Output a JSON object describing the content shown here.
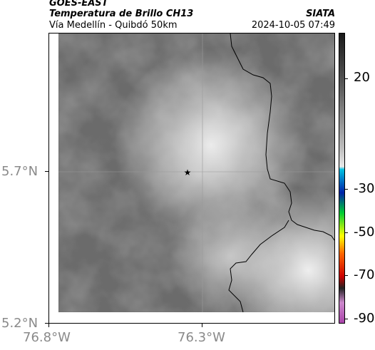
{
  "header": {
    "satellite": "GOES-EAST",
    "product": "Temperatura de Brillo CH13",
    "route": "Vía Medellín - Quibdó 50km",
    "agency": "SIATA",
    "datetime": "2024-10-05 07:49"
  },
  "map": {
    "lat_ticks": [
      "5.7°N",
      "5.2°N"
    ],
    "lon_ticks": [
      "76.8°W",
      "76.3°W"
    ],
    "marker": "star",
    "grid": true,
    "palette": {
      "background": "#6b6b6b",
      "cloud_light": "#e6e6e6",
      "coastline": "#000000",
      "gridline": "#9a9a9a"
    }
  },
  "colorbar": {
    "labels": [
      "20",
      "-30",
      "-50",
      "-70",
      "-90"
    ],
    "stops": [
      "#1a1a1a",
      "#5a5a5a",
      "#bfbfbf",
      "#e8e8e8",
      "#00c0e0",
      "#0022aa",
      "#00cc33",
      "#ffff00",
      "#ff6600",
      "#cc0000",
      "#222222",
      "#cc88cc",
      "#aa44aa"
    ]
  }
}
